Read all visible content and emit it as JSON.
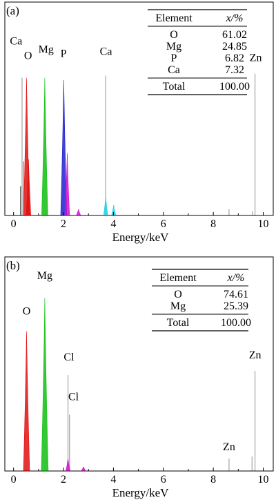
{
  "chart_data": [
    {
      "type": "bar",
      "panel_label": "(a)",
      "xlabel": "Energy/keV",
      "xlim": [
        -0.35,
        10.4
      ],
      "xticks": [
        "0",
        "2",
        "4",
        "6",
        "8",
        "10"
      ],
      "ylim": [
        0,
        100
      ],
      "table": {
        "headers": [
          "Element",
          "x/%"
        ],
        "rows": [
          {
            "element": "O",
            "value": "61.02"
          },
          {
            "element": "Mg",
            "value": "24.85"
          },
          {
            "element": "P",
            "value": "6.82"
          },
          {
            "element": "Ca",
            "value": "7.32"
          }
        ],
        "total": {
          "element": "Total",
          "value": "100.00"
        }
      },
      "annotations": [
        {
          "text": "Ca",
          "x": 0.1,
          "y": 82
        },
        {
          "text": "O",
          "x": 0.58,
          "y": 75
        },
        {
          "text": "Mg",
          "x": 1.3,
          "y": 78
        },
        {
          "text": "P",
          "x": 2.0,
          "y": 76
        },
        {
          "text": "Ca",
          "x": 3.7,
          "y": 77
        },
        {
          "text": "Zn",
          "x": 9.7,
          "y": 74
        }
      ],
      "peaks": [
        {
          "element": "C",
          "energy": 0.28,
          "value": 14,
          "color": "#333333",
          "shape": "line"
        },
        {
          "element": "Ca",
          "energy": 0.34,
          "value": 66,
          "color": "#999999",
          "shape": "line"
        },
        {
          "element": "Ca",
          "energy": 0.4,
          "value": 26,
          "color": "#777777",
          "shape": "line"
        },
        {
          "element": "O",
          "energy": 0.52,
          "value": 66,
          "color": "#e01010",
          "shape": "peak"
        },
        {
          "element": "O",
          "energy": 0.6,
          "value": 27,
          "color": "#e01010",
          "shape": "peak"
        },
        {
          "element": "Mg",
          "energy": 1.25,
          "value": 66,
          "color": "#10c010",
          "shape": "peak"
        },
        {
          "element": "P",
          "energy": 2.01,
          "value": 65,
          "color": "#2020d0",
          "shape": "peak"
        },
        {
          "element": "P",
          "energy": 2.15,
          "value": 30,
          "color": "#d010d0",
          "shape": "peak"
        },
        {
          "element": "Cl",
          "energy": 2.6,
          "value": 3,
          "color": "#d010d0",
          "shape": "peak"
        },
        {
          "element": "Ca",
          "energy": 3.69,
          "value": 67,
          "color": "#999999",
          "shape": "line"
        },
        {
          "element": "Ca",
          "energy": 3.69,
          "value": 9,
          "color": "#20d0e0",
          "shape": "peak"
        },
        {
          "element": "Ca",
          "energy": 4.01,
          "value": 5,
          "color": "#20d0e0",
          "shape": "peak"
        },
        {
          "element": "Zn",
          "energy": 8.63,
          "value": 3,
          "color": "#999999",
          "shape": "line"
        },
        {
          "element": "Zn",
          "energy": 9.57,
          "value": 2,
          "color": "#999999",
          "shape": "line"
        },
        {
          "element": "Zn",
          "energy": 9.67,
          "value": 68,
          "color": "#999999",
          "shape": "line"
        }
      ]
    },
    {
      "type": "bar",
      "panel_label": "(b)",
      "xlabel": "Energy/keV",
      "xlim": [
        -0.35,
        10.4
      ],
      "xticks": [
        "0",
        "2",
        "4",
        "6",
        "8",
        "10"
      ],
      "ylim": [
        0,
        100
      ],
      "table": {
        "headers": [
          "Element",
          "x/%"
        ],
        "rows": [
          {
            "element": "O",
            "value": "74.61"
          },
          {
            "element": "Mg",
            "value": "25.39"
          }
        ],
        "total": {
          "element": "Total",
          "value": "100.00"
        }
      },
      "annotations": [
        {
          "text": "Mg",
          "x": 1.25,
          "y": 92
        },
        {
          "text": "O",
          "x": 0.52,
          "y": 75
        },
        {
          "text": "Cl",
          "x": 2.22,
          "y": 53
        },
        {
          "text": "Cl",
          "x": 2.4,
          "y": 34
        },
        {
          "text": "Zn",
          "x": 8.63,
          "y": 10
        },
        {
          "text": "Zn",
          "x": 9.67,
          "y": 54
        }
      ],
      "peaks": [
        {
          "element": "O",
          "energy": 0.52,
          "value": 67,
          "color": "#e01010",
          "shape": "peak"
        },
        {
          "element": "Mg",
          "energy": 1.25,
          "value": 83,
          "color": "#10c010",
          "shape": "peak"
        },
        {
          "element": "Cl",
          "energy": 2.18,
          "value": 46,
          "color": "#999999",
          "shape": "line"
        },
        {
          "element": "Cl",
          "energy": 2.24,
          "value": 27,
          "color": "#999999",
          "shape": "line"
        },
        {
          "element": "Cl",
          "energy": 2.18,
          "value": 6,
          "color": "#d010d0",
          "shape": "peak"
        },
        {
          "element": "Cl",
          "energy": 2.8,
          "value": 2,
          "color": "#d010d0",
          "shape": "peak"
        },
        {
          "element": "Zn",
          "energy": 8.63,
          "value": 6,
          "color": "#999999",
          "shape": "line"
        },
        {
          "element": "Zn",
          "energy": 9.55,
          "value": 7,
          "color": "#999999",
          "shape": "line"
        },
        {
          "element": "Zn",
          "energy": 9.67,
          "value": 48,
          "color": "#999999",
          "shape": "line"
        }
      ]
    }
  ]
}
